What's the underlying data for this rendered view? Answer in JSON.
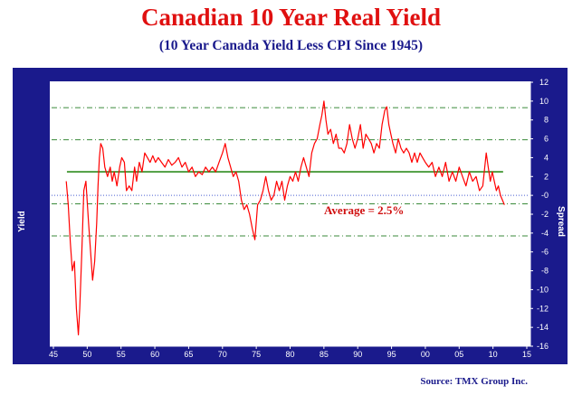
{
  "title": "Canadian 10 Year Real Yield",
  "subtitle": "(10 Year Canada Yield Less CPI Since 1945)",
  "source": "Source: TMX Group Inc.",
  "chart_data": {
    "type": "line",
    "ylabel": "Yield",
    "y2label": "Spread",
    "xlim": [
      1945,
      2015
    ],
    "ylim": [
      -16,
      12
    ],
    "x_ticks": [
      "45",
      "50",
      "55",
      "60",
      "65",
      "70",
      "75",
      "80",
      "85",
      "90",
      "95",
      "00",
      "05",
      "10",
      "15"
    ],
    "y_ticks": [
      "12",
      "10",
      "8",
      "6",
      "4",
      "2",
      "-0",
      "-2",
      "-4",
      "-6",
      "-8",
      "-10",
      "-12",
      "-14",
      "-16"
    ],
    "grid": false,
    "annotation": "Average = 2.5%",
    "average": 2.5,
    "reference_lines": [
      9.3,
      5.9,
      -0.9,
      -4.3
    ],
    "zero_line": 0,
    "colors": {
      "frame": "#1a1a8c",
      "plot_bg": "#ffffff",
      "series": "#ff0000",
      "average": "#2e8b1e",
      "band": "#3a8a3a",
      "zero": "#4a5fd0",
      "title": "#e01010"
    },
    "series": [
      {
        "x": [
          1946.9,
          1947.2,
          1947.5,
          1947.8,
          1948.1,
          1948.4,
          1948.7,
          1948.9,
          1949.2,
          1949.5,
          1949.8,
          1950.2,
          1950.5,
          1950.8,
          1951.1,
          1951.4,
          1951.6,
          1951.8,
          1952.0,
          1952.3,
          1952.6,
          1953.0,
          1953.4,
          1953.7,
          1954.0,
          1954.4,
          1954.8,
          1955.1,
          1955.5,
          1955.8,
          1956.2,
          1956.6,
          1957.0,
          1957.3,
          1957.7,
          1958.1,
          1958.5,
          1958.9,
          1959.3,
          1959.7,
          1960.1,
          1960.5,
          1961.0,
          1961.5,
          1962.0,
          1962.5,
          1963.0,
          1963.5,
          1964.0,
          1964.5,
          1965.0,
          1965.5,
          1966.0,
          1966.5,
          1967.0,
          1967.5,
          1968.0,
          1968.5,
          1969.0,
          1969.5,
          1970.0,
          1970.4,
          1970.8,
          1971.2,
          1971.6,
          1972.0,
          1972.4,
          1972.8,
          1973.2,
          1973.6,
          1974.0,
          1974.4,
          1974.8,
          1975.2,
          1975.6,
          1976.0,
          1976.4,
          1976.8,
          1977.2,
          1977.6,
          1978.0,
          1978.4,
          1978.8,
          1979.2,
          1979.6,
          1980.0,
          1980.4,
          1980.8,
          1981.2,
          1981.6,
          1982.0,
          1982.4,
          1982.8,
          1983.2,
          1983.6,
          1984.0,
          1984.4,
          1984.7,
          1985.0,
          1985.3,
          1985.6,
          1986.0,
          1986.4,
          1986.8,
          1987.2,
          1987.6,
          1988.0,
          1988.4,
          1988.8,
          1989.2,
          1989.6,
          1990.0,
          1990.4,
          1990.8,
          1991.2,
          1991.6,
          1992.0,
          1992.4,
          1992.8,
          1993.2,
          1993.6,
          1994.0,
          1994.3,
          1994.6,
          1994.9,
          1995.2,
          1995.6,
          1996.0,
          1996.4,
          1996.8,
          1997.2,
          1997.6,
          1998.0,
          1998.4,
          1998.8,
          1999.2,
          1999.6,
          2000.0,
          2000.5,
          2001.0,
          2001.5,
          2002.0,
          2002.5,
          2003.0,
          2003.5,
          2004.0,
          2004.5,
          2005.0,
          2005.5,
          2006.0,
          2006.5,
          2007.0,
          2007.5,
          2008.0,
          2008.5,
          2009.0,
          2009.3,
          2009.6,
          2009.9,
          2010.2,
          2010.5,
          2010.8,
          2011.1,
          2011.4,
          2011.7
        ],
        "y": [
          1.5,
          -1.0,
          -5.0,
          -8.0,
          -7.0,
          -12.0,
          -14.8,
          -12.0,
          -6.0,
          0.5,
          1.5,
          -3.0,
          -6.0,
          -9.0,
          -7.0,
          -3.0,
          1.0,
          4.0,
          5.5,
          5.0,
          3.0,
          2.0,
          3.0,
          1.5,
          2.5,
          1.0,
          3.0,
          4.0,
          3.5,
          0.5,
          1.0,
          0.5,
          3.0,
          1.5,
          3.5,
          2.5,
          4.5,
          4.0,
          3.5,
          4.2,
          3.5,
          4.0,
          3.5,
          3.0,
          3.8,
          3.2,
          3.5,
          4.0,
          3.0,
          3.5,
          2.5,
          3.0,
          2.0,
          2.5,
          2.2,
          3.0,
          2.5,
          3.0,
          2.5,
          3.5,
          4.5,
          5.5,
          4.0,
          3.0,
          2.0,
          2.5,
          1.5,
          -0.5,
          -1.5,
          -1.0,
          -2.0,
          -3.5,
          -4.7,
          -1.0,
          -0.5,
          0.5,
          2.0,
          0.5,
          -0.5,
          0.0,
          1.5,
          0.5,
          1.5,
          -0.5,
          1.0,
          2.0,
          1.5,
          2.5,
          1.5,
          3.0,
          4.0,
          3.0,
          2.0,
          4.5,
          5.5,
          6.0,
          7.5,
          8.5,
          10.0,
          8.0,
          6.5,
          7.0,
          5.5,
          6.5,
          5.0,
          5.0,
          4.5,
          5.5,
          7.5,
          6.0,
          5.0,
          6.0,
          7.5,
          5.0,
          6.5,
          6.0,
          5.5,
          4.5,
          5.5,
          5.0,
          7.5,
          9.0,
          9.4,
          7.5,
          6.5,
          5.5,
          4.5,
          6.0,
          5.0,
          4.5,
          5.0,
          4.5,
          3.5,
          4.5,
          3.5,
          4.5,
          4.0,
          3.5,
          3.0,
          3.5,
          2.0,
          3.0,
          2.0,
          3.5,
          1.5,
          2.5,
          1.5,
          3.0,
          2.0,
          1.0,
          2.5,
          1.5,
          2.0,
          0.5,
          1.0,
          4.5,
          3.0,
          1.5,
          2.5,
          1.5,
          0.5,
          1.0,
          0.0,
          -0.5,
          -1.0
        ]
      }
    ]
  }
}
